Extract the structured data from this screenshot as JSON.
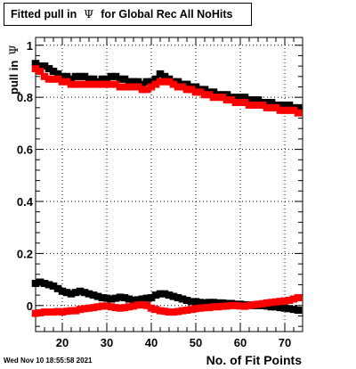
{
  "chart_data": {
    "type": "scatter",
    "title_prefix": "Fitted pull in",
    "title_symbol": "Ψ",
    "title_suffix": "for Global Rec All NoHits",
    "xlabel": "No. of Fit Points",
    "ylabel_prefix": "pull in",
    "ylabel_symbol": "Ψ",
    "xlim": [
      14,
      74
    ],
    "ylim": [
      -0.1,
      1.03
    ],
    "x_ticks": [
      20,
      30,
      40,
      50,
      60,
      70
    ],
    "y_ticks": [
      0,
      0.2,
      0.4,
      0.6,
      0.8,
      1
    ],
    "y_tick_labels": [
      "0",
      "0.2",
      "0.4",
      "0.6",
      "0.8",
      "1"
    ],
    "grid": true,
    "series": [
      {
        "color": "#000000",
        "x": [
          14,
          15,
          16,
          17,
          18,
          19,
          20,
          21,
          22,
          23,
          24,
          25,
          26,
          27,
          28,
          29,
          30,
          31,
          32,
          33,
          34,
          35,
          36,
          37,
          38,
          39,
          40,
          41,
          42,
          43,
          44,
          45,
          46,
          47,
          48,
          49,
          50,
          51,
          52,
          53,
          54,
          55,
          56,
          57,
          58,
          59,
          60,
          61,
          62,
          63,
          64,
          65,
          66,
          67,
          68,
          69,
          70,
          71,
          72,
          73
        ],
        "y": [
          0.93,
          0.92,
          0.92,
          0.91,
          0.9,
          0.89,
          0.88,
          0.88,
          0.87,
          0.88,
          0.88,
          0.88,
          0.87,
          0.87,
          0.86,
          0.87,
          0.87,
          0.88,
          0.88,
          0.87,
          0.87,
          0.86,
          0.86,
          0.86,
          0.85,
          0.86,
          0.86,
          0.87,
          0.89,
          0.88,
          0.87,
          0.86,
          0.86,
          0.85,
          0.85,
          0.84,
          0.84,
          0.83,
          0.83,
          0.82,
          0.82,
          0.81,
          0.81,
          0.81,
          0.8,
          0.8,
          0.8,
          0.8,
          0.79,
          0.79,
          0.79,
          0.78,
          0.78,
          0.78,
          0.77,
          0.77,
          0.77,
          0.77,
          0.76,
          0.76
        ]
      },
      {
        "color": "#ff0000",
        "x": [
          14,
          15,
          16,
          17,
          18,
          19,
          20,
          21,
          22,
          23,
          24,
          25,
          26,
          27,
          28,
          29,
          30,
          31,
          32,
          33,
          34,
          35,
          36,
          37,
          38,
          39,
          40,
          41,
          42,
          43,
          44,
          45,
          46,
          47,
          48,
          49,
          50,
          51,
          52,
          53,
          54,
          55,
          56,
          57,
          58,
          59,
          60,
          61,
          62,
          63,
          64,
          65,
          66,
          67,
          68,
          69,
          70,
          71,
          72,
          73
        ],
        "y": [
          0.91,
          0.9,
          0.88,
          0.87,
          0.87,
          0.87,
          0.86,
          0.86,
          0.85,
          0.85,
          0.85,
          0.85,
          0.85,
          0.85,
          0.85,
          0.85,
          0.85,
          0.85,
          0.85,
          0.84,
          0.84,
          0.84,
          0.84,
          0.84,
          0.83,
          0.83,
          0.84,
          0.85,
          0.86,
          0.86,
          0.86,
          0.85,
          0.84,
          0.84,
          0.83,
          0.83,
          0.82,
          0.82,
          0.81,
          0.81,
          0.8,
          0.8,
          0.8,
          0.79,
          0.79,
          0.78,
          0.78,
          0.78,
          0.77,
          0.77,
          0.77,
          0.77,
          0.76,
          0.76,
          0.76,
          0.75,
          0.75,
          0.75,
          0.75,
          0.74
        ]
      },
      {
        "color": "#000000",
        "x": [
          14,
          15,
          16,
          17,
          18,
          19,
          20,
          21,
          22,
          23,
          24,
          25,
          26,
          27,
          28,
          29,
          30,
          31,
          32,
          33,
          34,
          35,
          36,
          37,
          38,
          39,
          40,
          41,
          42,
          43,
          44,
          45,
          46,
          47,
          48,
          49,
          50,
          51,
          52,
          53,
          54,
          55,
          56,
          57,
          58,
          59,
          60,
          61,
          62,
          63,
          64,
          65,
          66,
          67,
          68,
          69,
          70,
          71,
          72,
          73
        ],
        "y": [
          0.085,
          0.09,
          0.085,
          0.08,
          0.075,
          0.065,
          0.055,
          0.05,
          0.045,
          0.05,
          0.055,
          0.05,
          0.045,
          0.04,
          0.035,
          0.03,
          0.028,
          0.025,
          0.028,
          0.032,
          0.03,
          0.025,
          0.02,
          0.022,
          0.025,
          0.028,
          0.03,
          0.04,
          0.045,
          0.045,
          0.04,
          0.035,
          0.03,
          0.025,
          0.02,
          0.015,
          0.015,
          0.012,
          0.01,
          0.012,
          0.012,
          0.01,
          0.01,
          0.008,
          0.008,
          0.005,
          0.005,
          0.003,
          0.002,
          0.0,
          0.0,
          0.0,
          -0.002,
          -0.005,
          -0.005,
          -0.008,
          -0.01,
          -0.012,
          -0.015,
          -0.018
        ]
      },
      {
        "color": "#ff0000",
        "x": [
          14,
          15,
          16,
          17,
          18,
          19,
          20,
          21,
          22,
          23,
          24,
          25,
          26,
          27,
          28,
          29,
          30,
          31,
          32,
          33,
          34,
          35,
          36,
          37,
          38,
          39,
          40,
          41,
          42,
          43,
          44,
          45,
          46,
          47,
          48,
          49,
          50,
          51,
          52,
          53,
          54,
          55,
          56,
          57,
          58,
          59,
          60,
          61,
          62,
          63,
          64,
          65,
          66,
          67,
          68,
          69,
          70,
          71,
          72,
          73
        ],
        "y": [
          -0.03,
          -0.028,
          -0.025,
          -0.025,
          -0.025,
          -0.023,
          -0.025,
          -0.022,
          -0.02,
          -0.02,
          -0.015,
          -0.012,
          -0.01,
          -0.008,
          -0.005,
          -0.002,
          -0.002,
          -0.005,
          -0.008,
          -0.01,
          -0.008,
          -0.005,
          -0.002,
          0.002,
          0.003,
          0.0,
          -0.01,
          -0.015,
          -0.02,
          -0.022,
          -0.025,
          -0.025,
          -0.023,
          -0.02,
          -0.018,
          -0.015,
          -0.012,
          -0.01,
          -0.008,
          -0.008,
          -0.005,
          -0.005,
          -0.003,
          -0.002,
          0.0,
          0.0,
          -0.002,
          -0.003,
          0.0,
          0.003,
          0.005,
          0.007,
          0.01,
          0.012,
          0.014,
          0.016,
          0.018,
          0.02,
          0.025,
          0.03
        ]
      }
    ]
  },
  "footer": {
    "datetime": "Wed Nov 10 18:55:58 2021"
  }
}
